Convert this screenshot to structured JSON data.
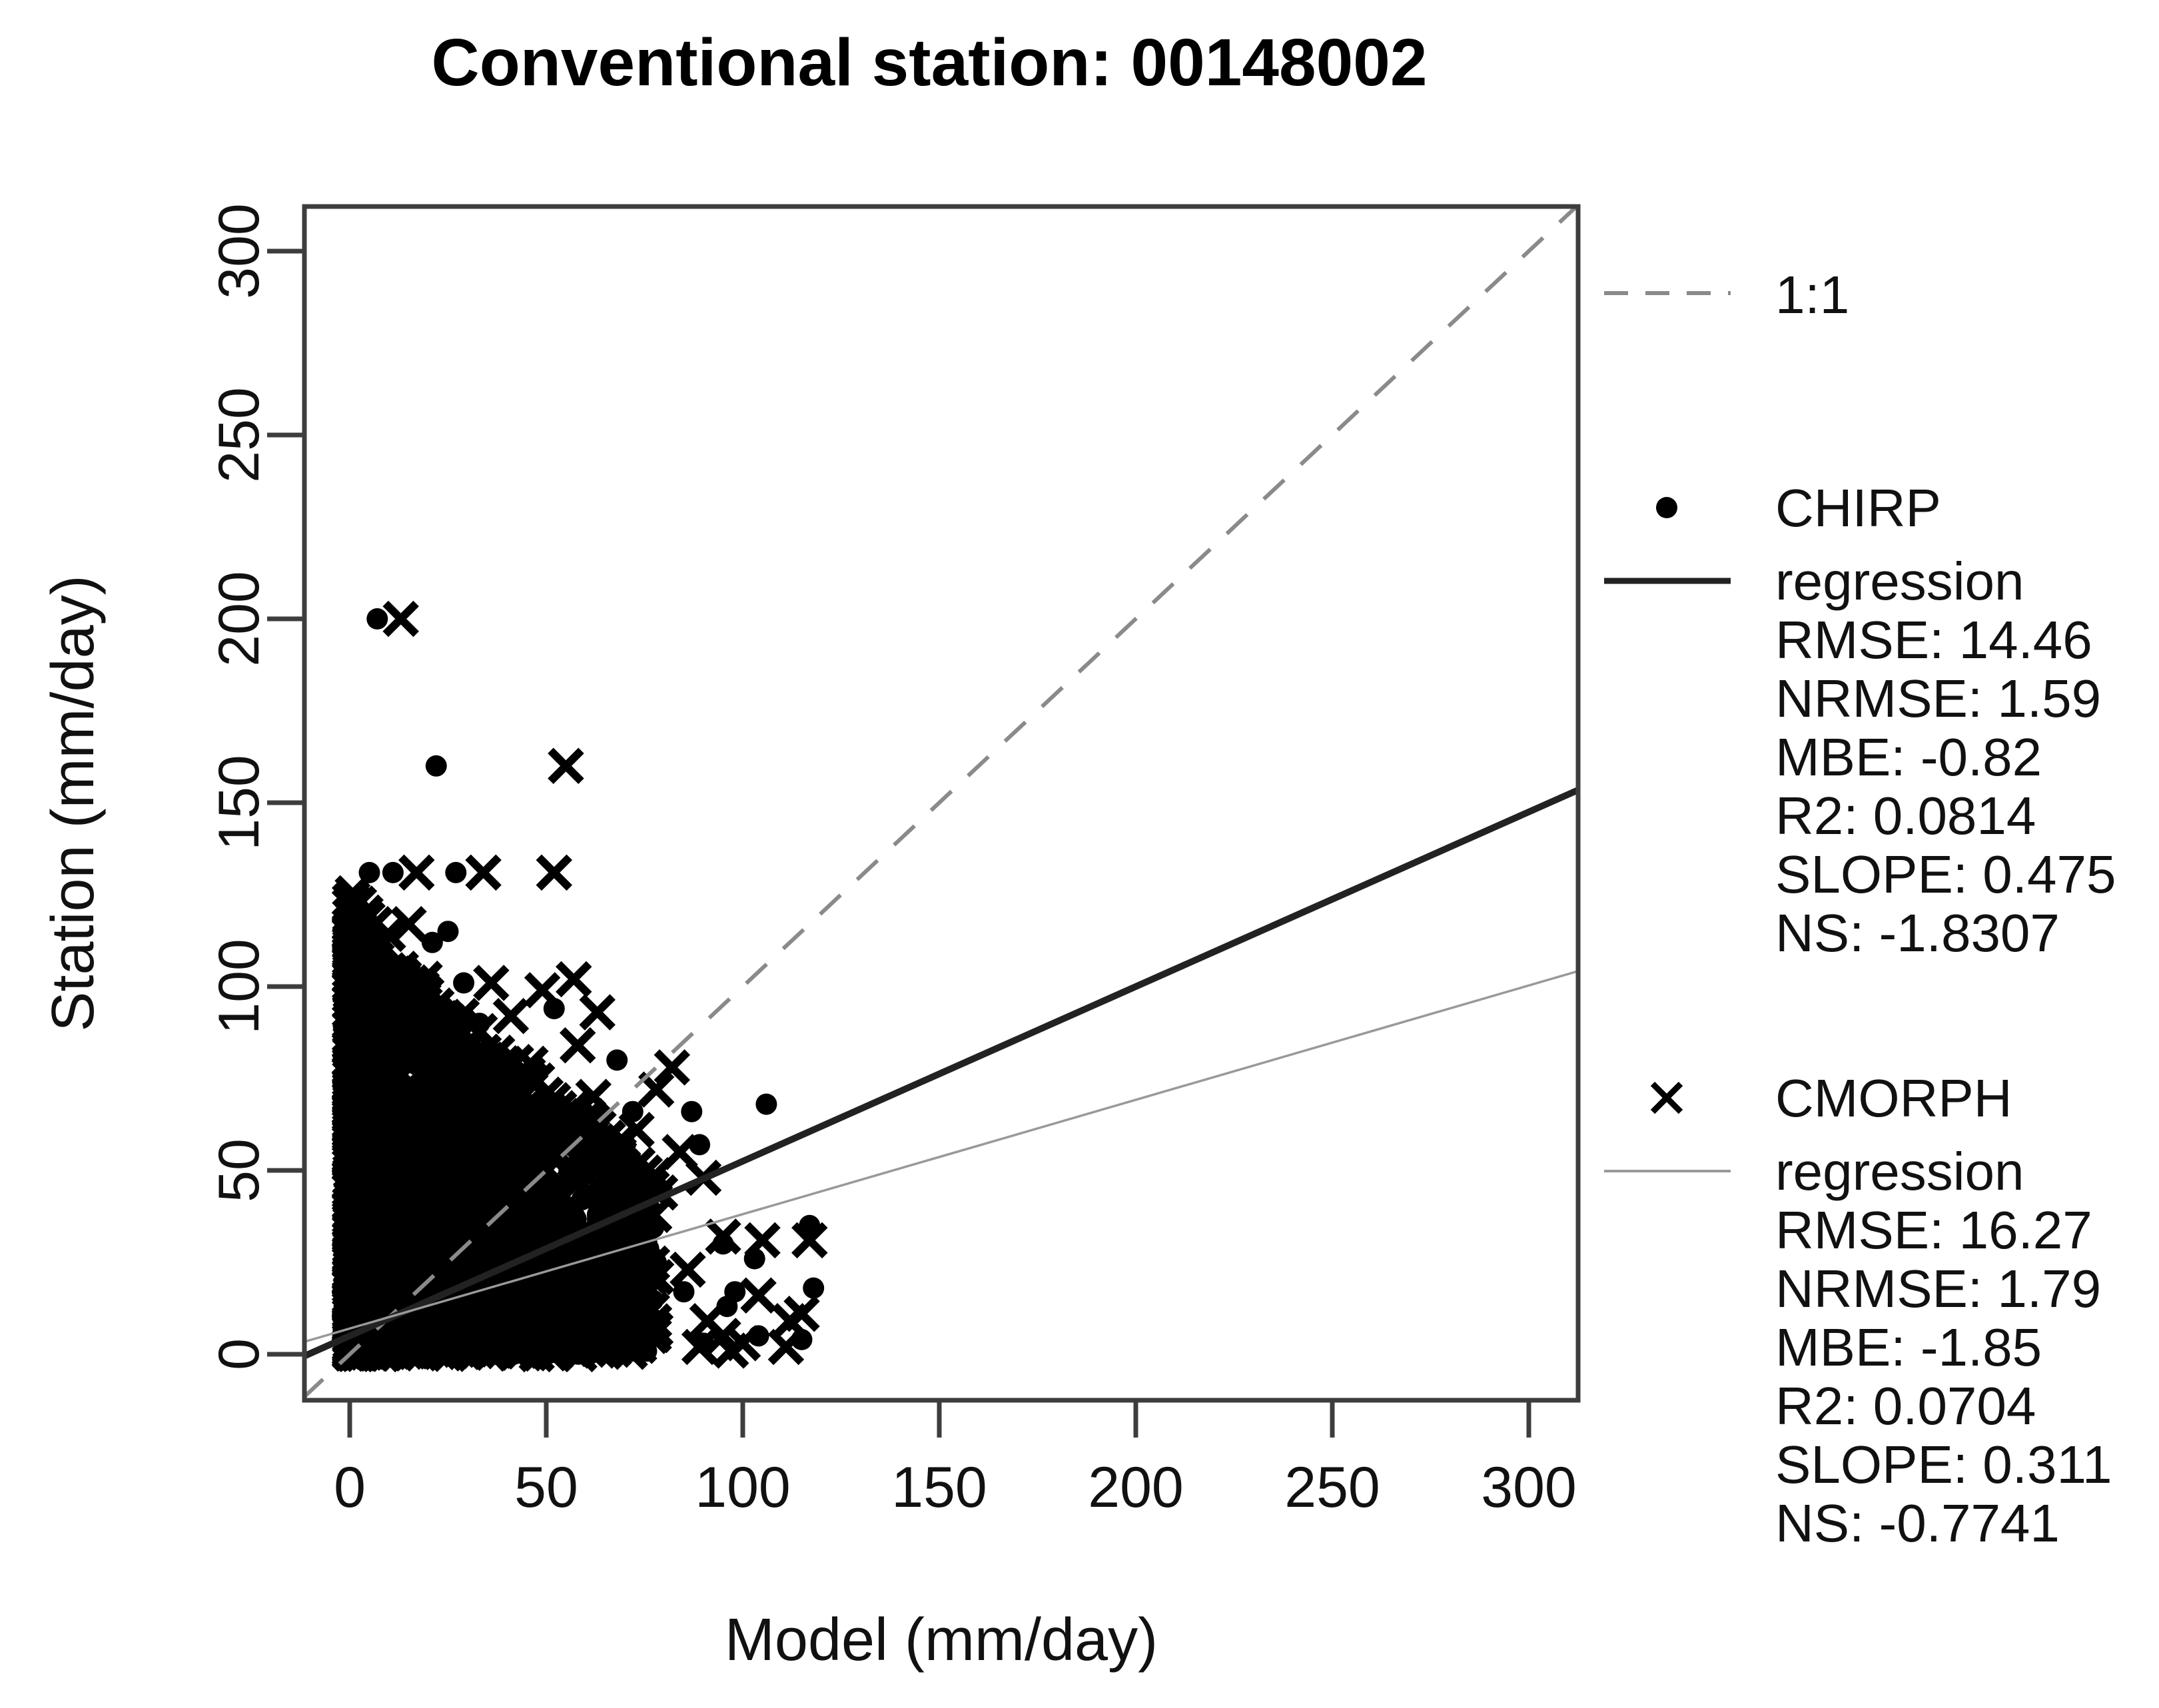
{
  "chart_data": {
    "type": "scatter",
    "title": "Conventional station: 00148002",
    "xlabel": "Model (mm/day)",
    "ylabel": "Station (mm/day)",
    "xlim": [
      0,
      300
    ],
    "ylim": [
      0,
      300
    ],
    "xticks": [
      0,
      50,
      100,
      150,
      200,
      250,
      300
    ],
    "yticks": [
      0,
      50,
      100,
      150,
      200,
      250,
      300
    ],
    "grid": false,
    "legend_position": "right",
    "marker_color": "#000000",
    "reference_line": {
      "label": "1:1",
      "slope": 1,
      "intercept": 0,
      "style": "dashed",
      "color": "#8a8a8a",
      "width": 6
    },
    "series": [
      {
        "name": "CHIRP",
        "marker": "dot",
        "regression_label": "regression",
        "regression": {
          "slope": 0.475,
          "intercept": 5,
          "color": "#222222",
          "width": 10,
          "style": "solid"
        },
        "stats": {
          "RMSE": 14.46,
          "NRMSE": 1.59,
          "MBE": -0.82,
          "R2": 0.0814,
          "SLOPE": 0.475,
          "NS": -1.8307
        },
        "stat_lines": [
          "RMSE: 14.46",
          "NRMSE: 1.59",
          "MBE: -0.82",
          "R2: 0.0814",
          "SLOPE: 0.475",
          "NS: -1.8307"
        ],
        "feature_points": [
          [
            7,
            200
          ],
          [
            22,
            160
          ],
          [
            5,
            131
          ],
          [
            11,
            131
          ],
          [
            27,
            131
          ],
          [
            25,
            115
          ],
          [
            21,
            112
          ],
          [
            29,
            101
          ],
          [
            52,
            94
          ],
          [
            33,
            90
          ],
          [
            38,
            75
          ],
          [
            68,
            80
          ],
          [
            48,
            65
          ],
          [
            45,
            56
          ],
          [
            60,
            49
          ],
          [
            58,
            30
          ],
          [
            65,
            12
          ],
          [
            72,
            66
          ],
          [
            87,
            66
          ],
          [
            106,
            68
          ],
          [
            89,
            57
          ],
          [
            70,
            29
          ],
          [
            95,
            30
          ],
          [
            117,
            35
          ],
          [
            85,
            17
          ],
          [
            98,
            17
          ],
          [
            104,
            5
          ],
          [
            115,
            4
          ],
          [
            96,
            13
          ],
          [
            118,
            18
          ],
          [
            78,
            8
          ],
          [
            90,
            3
          ],
          [
            103,
            26
          ]
        ],
        "cluster": {
          "seed": 101,
          "count": 1250,
          "x_max": 78,
          "x_skew": 2.6,
          "y_base": 118,
          "y_decay": 90,
          "y_skew": 1.35
        }
      },
      {
        "name": "CMORPH",
        "marker": "x",
        "regression_label": "regression",
        "regression": {
          "slope": 0.311,
          "intercept": 7,
          "color": "#999999",
          "width": 3.5,
          "style": "solid"
        },
        "stats": {
          "RMSE": 16.27,
          "NRMSE": 1.79,
          "MBE": -1.85,
          "R2": 0.0704,
          "SLOPE": 0.311,
          "NS": -0.7741
        },
        "stat_lines": [
          "RMSE: 16.27",
          "NRMSE: 1.79",
          "MBE: -1.85",
          "R2: 0.0704",
          "SLOPE: 0.311",
          "NS: -0.7741"
        ],
        "feature_points": [
          [
            13,
            200
          ],
          [
            55,
            160
          ],
          [
            17,
            131
          ],
          [
            34,
            131
          ],
          [
            52,
            131
          ],
          [
            15,
            117
          ],
          [
            36,
            101
          ],
          [
            57,
            102
          ],
          [
            49,
            99
          ],
          [
            63,
            93
          ],
          [
            41,
            92
          ],
          [
            58,
            84
          ],
          [
            46,
            79
          ],
          [
            82,
            78
          ],
          [
            78,
            72
          ],
          [
            62,
            70
          ],
          [
            73,
            61
          ],
          [
            50,
            57
          ],
          [
            69,
            50
          ],
          [
            84,
            55
          ],
          [
            90,
            48
          ],
          [
            79,
            44
          ],
          [
            73,
            41
          ],
          [
            66,
            38
          ],
          [
            95,
            32
          ],
          [
            86,
            23
          ],
          [
            78,
            21
          ],
          [
            59,
            19
          ],
          [
            104,
            16
          ],
          [
            115,
            11
          ],
          [
            105,
            31
          ],
          [
            117,
            31
          ],
          [
            91,
            9
          ],
          [
            95,
            5
          ],
          [
            89,
            2
          ],
          [
            97,
            1
          ],
          [
            112,
            9
          ],
          [
            111,
            2
          ],
          [
            100,
            3
          ]
        ],
        "cluster": {
          "seed": 202,
          "count": 1250,
          "x_max": 78,
          "x_skew": 2.6,
          "y_base": 118,
          "y_decay": 90,
          "y_skew": 1.35
        },
        "edge_accent": {
          "seed": 303,
          "count": 150,
          "x_max": 70,
          "x_skew": 1.6,
          "band_lo": 0.86,
          "band_hi": 1.08
        }
      }
    ]
  }
}
